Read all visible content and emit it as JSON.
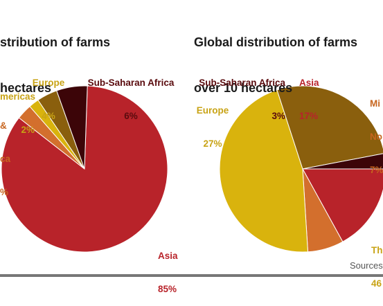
{
  "colors": {
    "asia": "#b8232a",
    "middle_east_north_africa": "#d36f2d",
    "americas": "#d9b30d",
    "europe": "#8a5f0d",
    "sub_saharan_africa": "#3c0508",
    "label_dark": "#5a0b0e",
    "label_asia": "#b8232a",
    "label_orange": "#c7651e",
    "label_gold": "#c8a315"
  },
  "chart_data": [
    {
      "type": "pie",
      "title_lines": [
        "stribution of farms",
        "hectares"
      ],
      "slices": [
        {
          "label_lines": [
            "Asia"
          ],
          "value": 85,
          "value_text": "85%",
          "color": "#b8232a",
          "label_color": "#b8232a"
        },
        {
          "label_lines": [
            "&",
            "ca"
          ],
          "value": 3,
          "value_text": "%",
          "color": "#d36f2d",
          "label_color": "#c7651e"
        },
        {
          "label_lines": [
            "mericas"
          ],
          "value": 2,
          "value_text": "2%",
          "color": "#d9b30d",
          "label_color": "#c8a315"
        },
        {
          "label_lines": [
            "Europe"
          ],
          "value": 4,
          "value_text": "4%",
          "color": "#8a5f0d",
          "label_color": "#c8a315"
        },
        {
          "label_lines": [
            "Sub-Saharan Africa"
          ],
          "value": 6,
          "value_text": "6%",
          "color": "#3c0508",
          "label_color": "#5a0b0e"
        }
      ]
    },
    {
      "type": "pie",
      "title_lines": [
        "Global distribution of farms",
        "over 10 hectares"
      ],
      "slices": [
        {
          "label_lines": [
            "Asia"
          ],
          "value": 17,
          "value_text": "17%",
          "color": "#b8232a",
          "label_color": "#b8232a"
        },
        {
          "label_lines": [
            "Mi",
            "No"
          ],
          "value": 7,
          "value_text": "7%",
          "color": "#d36f2d",
          "label_color": "#c7651e"
        },
        {
          "label_lines": [
            "Th"
          ],
          "value": 46,
          "value_text": "46",
          "color": "#d9b30d",
          "label_color": "#c8a315"
        },
        {
          "label_lines": [
            "Europe"
          ],
          "value": 27,
          "value_text": "27%",
          "color": "#8a5f0d",
          "label_color": "#c8a315"
        },
        {
          "label_lines": [
            "Sub-Saharan Africa"
          ],
          "value": 3,
          "value_text": "3%",
          "color": "#3c0508",
          "label_color": "#5a0b0e"
        }
      ]
    }
  ],
  "source_text": "Sources"
}
